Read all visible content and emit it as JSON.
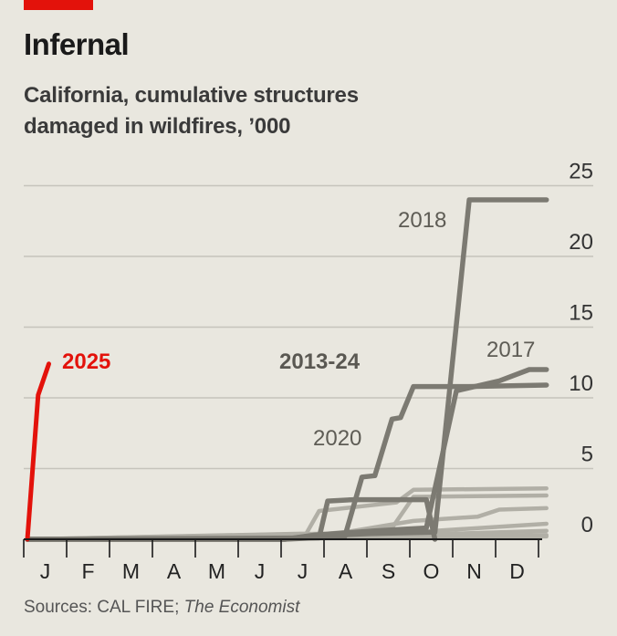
{
  "header": {
    "title": "Infernal",
    "subtitle_line1": "California, cumulative structures",
    "subtitle_line2": "damaged in wildfires, ’000"
  },
  "source": {
    "prefix": "Sources: CAL FIRE; ",
    "publication": "The Economist"
  },
  "colors": {
    "background": "#e9e7df",
    "highlight": "#e3120b",
    "history_dark": "#7c7a72",
    "history_light": "#b1afa6",
    "grid": "#c6c4bc",
    "axis": "#1a1a1a"
  },
  "chart_data": {
    "type": "line",
    "title": "Infernal",
    "subtitle": "California, cumulative structures damaged in wildfires, ’000",
    "xlabel": "",
    "ylabel": "",
    "x_unit": "month (0 = start of January, 12 = end of December)",
    "xlim": [
      0,
      12
    ],
    "ylim": [
      0,
      25
    ],
    "yticks": [
      0,
      5,
      10,
      15,
      20,
      25
    ],
    "ytick_labels": [
      "0",
      "5",
      "10",
      "15",
      "20",
      "25"
    ],
    "xtick_labels": [
      "J",
      "F",
      "M",
      "A",
      "M",
      "J",
      "J",
      "A",
      "S",
      "O",
      "N",
      "D"
    ],
    "grid": true,
    "group_label": "2013-24",
    "highlight_label": "2025",
    "series": [
      {
        "name": "2018",
        "emphasis": "labelled",
        "points": [
          [
            0,
            0
          ],
          [
            6.0,
            0
          ],
          [
            6.5,
            0.2
          ],
          [
            8.0,
            0.4
          ],
          [
            9.5,
            0.5
          ],
          [
            10.3,
            24
          ],
          [
            12.1,
            24
          ]
        ]
      },
      {
        "name": "2017",
        "emphasis": "labelled",
        "points": [
          [
            0,
            0
          ],
          [
            6.0,
            0
          ],
          [
            6.7,
            0.3
          ],
          [
            8.1,
            0.6
          ],
          [
            9.3,
            0.8
          ],
          [
            10.0,
            10.5
          ],
          [
            11.0,
            11.2
          ],
          [
            11.7,
            12
          ],
          [
            12.1,
            12
          ]
        ]
      },
      {
        "name": "2020",
        "emphasis": "labelled",
        "points": [
          [
            0,
            0
          ],
          [
            6.0,
            0
          ],
          [
            7.4,
            0.2
          ],
          [
            7.8,
            4.4
          ],
          [
            8.1,
            4.5
          ],
          [
            8.5,
            8.5
          ],
          [
            8.7,
            8.6
          ],
          [
            9.0,
            10.8
          ],
          [
            9.4,
            10.8
          ],
          [
            10.3,
            10.8
          ],
          [
            12.1,
            10.9
          ]
        ]
      },
      {
        "name": "",
        "emphasis": "dark",
        "points": [
          [
            0,
            0
          ],
          [
            6.8,
            0.1
          ],
          [
            7.0,
            2.7
          ],
          [
            7.6,
            2.8
          ],
          [
            9.3,
            2.8
          ],
          [
            9.5,
            0
          ]
        ]
      },
      {
        "name": "",
        "emphasis": "light",
        "points": [
          [
            0,
            0
          ],
          [
            6.5,
            0.4
          ],
          [
            6.8,
            2.0
          ],
          [
            7.4,
            2.2
          ],
          [
            8.6,
            2.6
          ],
          [
            9.0,
            3.5
          ],
          [
            12.1,
            3.6
          ]
        ]
      },
      {
        "name": "",
        "emphasis": "light",
        "points": [
          [
            0,
            0
          ],
          [
            7.0,
            0.4
          ],
          [
            8.5,
            0.8
          ],
          [
            9.0,
            3.0
          ],
          [
            12.1,
            3.1
          ]
        ]
      },
      {
        "name": "",
        "emphasis": "light",
        "points": [
          [
            0,
            0
          ],
          [
            7.0,
            0.3
          ],
          [
            9.0,
            1.3
          ],
          [
            10.5,
            1.6
          ],
          [
            11.0,
            2.1
          ],
          [
            12.1,
            2.2
          ]
        ]
      },
      {
        "name": "",
        "emphasis": "light",
        "points": [
          [
            0,
            0
          ],
          [
            8.0,
            0.3
          ],
          [
            9.5,
            0.6
          ],
          [
            12.1,
            1.1
          ]
        ]
      },
      {
        "name": "",
        "emphasis": "light",
        "points": [
          [
            0,
            0
          ],
          [
            8.0,
            0.2
          ],
          [
            10.0,
            0.4
          ],
          [
            12.1,
            0.6
          ]
        ]
      },
      {
        "name": "",
        "emphasis": "light",
        "points": [
          [
            0,
            0
          ],
          [
            9.0,
            0.15
          ],
          [
            12.1,
            0.3
          ]
        ]
      },
      {
        "name": "",
        "emphasis": "light",
        "points": [
          [
            0,
            0
          ],
          [
            10.0,
            0.1
          ],
          [
            12.1,
            0.2
          ]
        ]
      },
      {
        "name": "2025",
        "emphasis": "highlight",
        "points": [
          [
            0,
            0
          ],
          [
            0.25,
            10.2
          ],
          [
            0.5,
            12.4
          ]
        ]
      }
    ]
  }
}
